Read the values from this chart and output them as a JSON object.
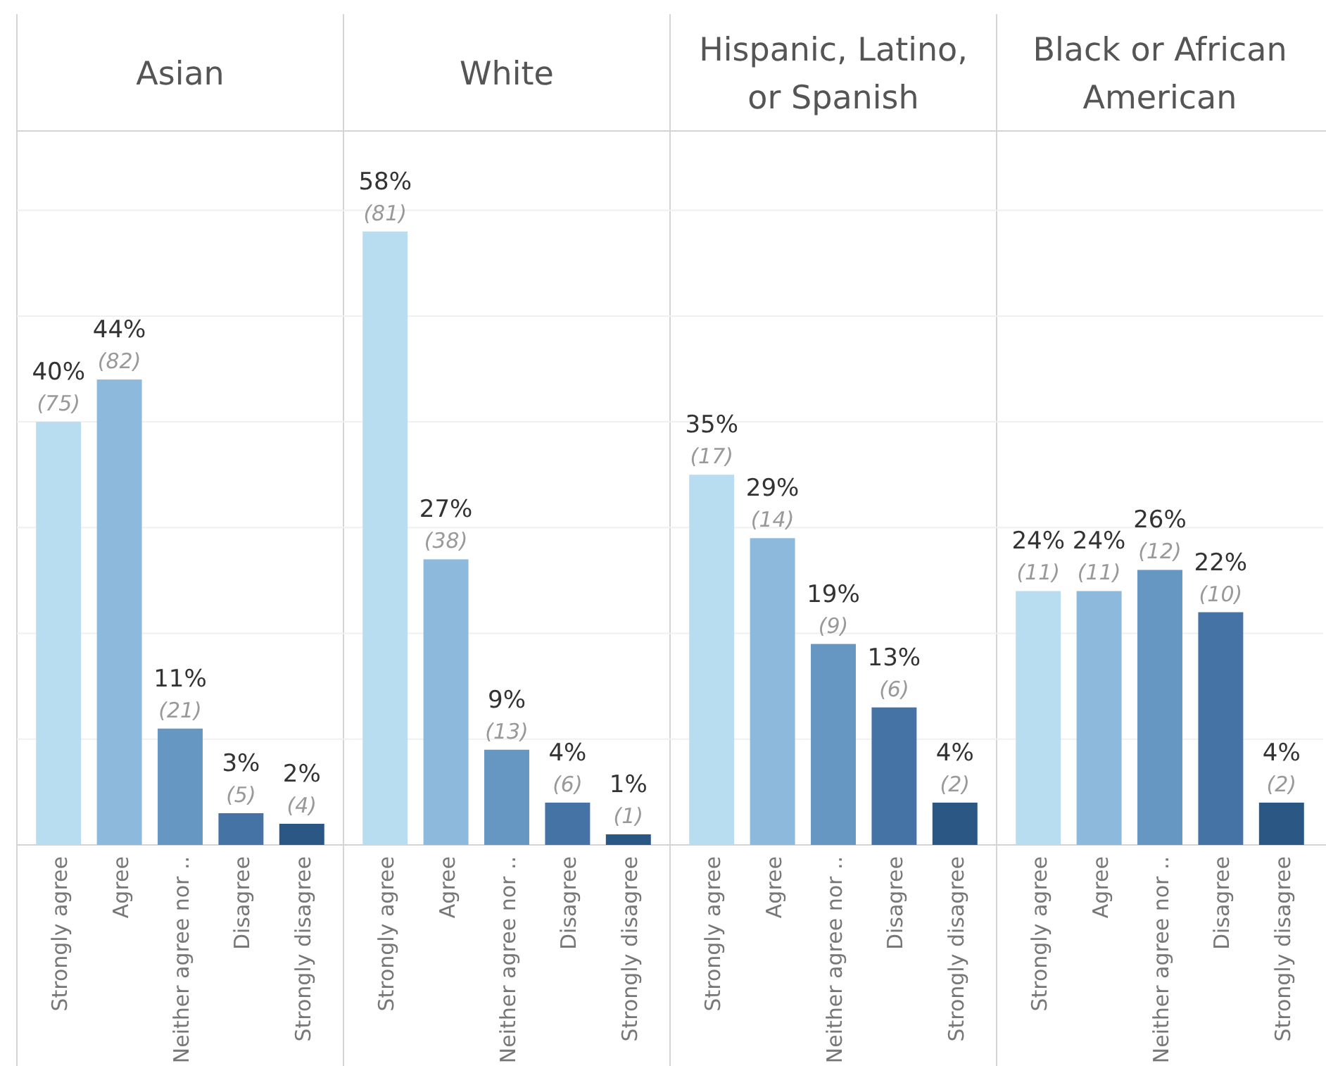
{
  "chart_data": [
    {
      "type": "bar",
      "title": "Asian",
      "categories": [
        "Strongly agree",
        "Agree",
        "Neither agree nor ..",
        "Disagree",
        "Strongly disagree"
      ],
      "values": [
        40,
        44,
        11,
        3,
        2
      ],
      "colors": [
        "#b9ddf0",
        "#8cb9dc",
        "#6697c2",
        "#4673a5",
        "#2b5784"
      ],
      "value_labels": [
        "40%",
        "44%",
        "11%",
        "3%",
        "2%"
      ],
      "annotations": [
        {
          "text": "(75)",
          "x": "Strongly agree",
          "y": 40
        },
        {
          "text": "(82)",
          "x": "Agree",
          "y": 44
        },
        {
          "text": "(21)",
          "x": "Neither agree nor ..",
          "y": 11
        },
        {
          "text": "(5)",
          "x": "Disagree",
          "y": 3
        },
        {
          "text": "(4)",
          "x": "Strongly disagree",
          "y": 2
        }
      ],
      "ylim": [
        0,
        67.5
      ],
      "yticks": [
        {
          "value": 10,
          "label": null
        },
        {
          "value": 20,
          "label": null
        },
        {
          "value": 30,
          "label": null
        },
        {
          "value": 40,
          "label": null
        },
        {
          "value": 50,
          "label": null
        },
        {
          "value": 60,
          "label": null
        }
      ],
      "grid": "y",
      "tick_labels": "x"
    },
    {
      "type": "bar",
      "title": "White",
      "categories": [
        "Strongly agree",
        "Agree",
        "Neither agree nor ..",
        "Disagree",
        "Strongly disagree"
      ],
      "values": [
        58,
        27,
        9,
        4,
        1
      ],
      "colors": [
        "#b9ddf0",
        "#8cb9dc",
        "#6697c2",
        "#4673a5",
        "#2b5784"
      ],
      "value_labels": [
        "58%",
        "27%",
        "9%",
        "4%",
        "1%"
      ],
      "annotations": [
        {
          "text": "(81)",
          "x": "Strongly agree",
          "y": 58
        },
        {
          "text": "(38)",
          "x": "Agree",
          "y": 27
        },
        {
          "text": "(13)",
          "x": "Neither agree nor ..",
          "y": 9
        },
        {
          "text": "(6)",
          "x": "Disagree",
          "y": 4
        },
        {
          "text": "(1)",
          "x": "Strongly disagree",
          "y": 1
        }
      ],
      "ylim": [
        0,
        67.5
      ],
      "yticks": [
        {
          "value": 10,
          "label": null
        },
        {
          "value": 20,
          "label": null
        },
        {
          "value": 30,
          "label": null
        },
        {
          "value": 40,
          "label": null
        },
        {
          "value": 50,
          "label": null
        },
        {
          "value": 60,
          "label": null
        }
      ],
      "grid": "y",
      "tick_labels": "x"
    },
    {
      "type": "bar",
      "title": "Hispanic, Latino, or Spanish",
      "categories": [
        "Strongly agree",
        "Agree",
        "Neither agree nor ..",
        "Disagree",
        "Strongly disagree"
      ],
      "values": [
        35,
        29,
        19,
        13,
        4
      ],
      "colors": [
        "#b9ddf0",
        "#8cb9dc",
        "#6697c2",
        "#4673a5",
        "#2b5784"
      ],
      "value_labels": [
        "35%",
        "29%",
        "19%",
        "13%",
        "4%"
      ],
      "annotations": [
        {
          "text": "(17)",
          "x": "Strongly agree",
          "y": 35
        },
        {
          "text": "(14)",
          "x": "Agree",
          "y": 29
        },
        {
          "text": "(9)",
          "x": "Neither agree nor ..",
          "y": 19
        },
        {
          "text": "(6)",
          "x": "Disagree",
          "y": 13
        },
        {
          "text": "(2)",
          "x": "Strongly disagree",
          "y": 4
        }
      ],
      "ylim": [
        0,
        67.5
      ],
      "yticks": [
        {
          "value": 10,
          "label": null
        },
        {
          "value": 20,
          "label": null
        },
        {
          "value": 30,
          "label": null
        },
        {
          "value": 40,
          "label": null
        },
        {
          "value": 50,
          "label": null
        },
        {
          "value": 60,
          "label": null
        }
      ],
      "grid": "y",
      "tick_labels": "x"
    },
    {
      "type": "bar",
      "title": "Black or African American",
      "categories": [
        "Strongly agree",
        "Agree",
        "Neither agree nor ..",
        "Disagree",
        "Strongly disagree"
      ],
      "values": [
        24,
        24,
        26,
        22,
        4
      ],
      "colors": [
        "#b9ddf0",
        "#8cb9dc",
        "#6697c2",
        "#4673a5",
        "#2b5784"
      ],
      "value_labels": [
        "24%",
        "24%",
        "26%",
        "22%",
        "4%"
      ],
      "annotations": [
        {
          "text": "(11)",
          "x": "Strongly agree",
          "y": 24
        },
        {
          "text": "(11)",
          "x": "Agree",
          "y": 24
        },
        {
          "text": "(12)",
          "x": "Neither agree nor ..",
          "y": 26
        },
        {
          "text": "(10)",
          "x": "Disagree",
          "y": 22
        },
        {
          "text": "(2)",
          "x": "Strongly disagree",
          "y": 4
        }
      ],
      "ylim": [
        0,
        67.5
      ],
      "yticks": [
        {
          "value": 10,
          "label": null
        },
        {
          "value": 20,
          "label": null
        },
        {
          "value": 30,
          "label": null
        },
        {
          "value": 40,
          "label": null
        },
        {
          "value": 50,
          "label": null
        },
        {
          "value": 60,
          "label": null
        }
      ],
      "grid": "y",
      "tick_labels": "x"
    }
  ]
}
